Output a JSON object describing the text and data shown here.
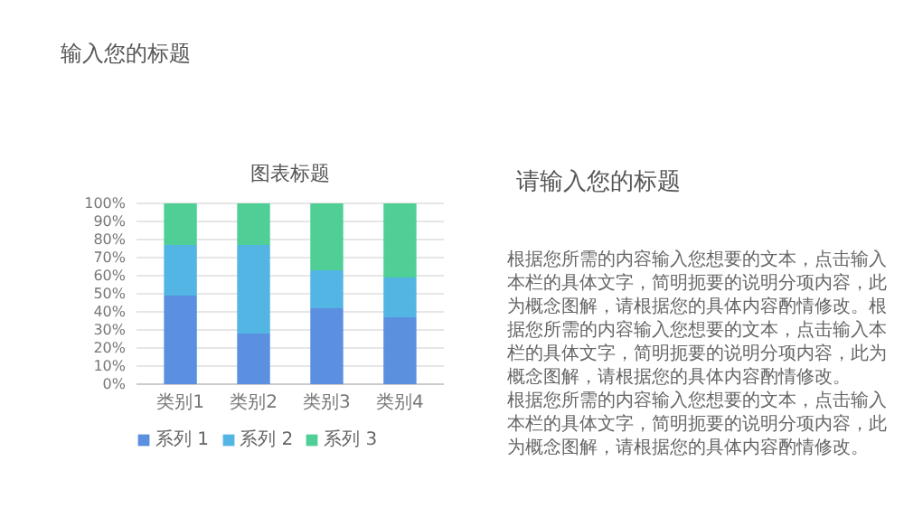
{
  "chart_data": {
    "type": "bar",
    "stacked": true,
    "title": "图表标题",
    "categories": [
      "类别1",
      "类别2",
      "类别3",
      "类别4"
    ],
    "series": [
      {
        "name": "系列 1",
        "color": "#5b8fe0",
        "values": [
          49,
          28,
          42,
          37
        ]
      },
      {
        "name": "系列 2",
        "color": "#52b5e3",
        "values": [
          28,
          49,
          21,
          22
        ]
      },
      {
        "name": "系列 3",
        "color": "#4fcf96",
        "values": [
          23,
          23,
          37,
          41
        ]
      }
    ],
    "ylim": [
      0,
      100
    ],
    "yticks": [
      {
        "value": 0,
        "label": "0%"
      },
      {
        "value": 10,
        "label": "10%"
      },
      {
        "value": 20,
        "label": "20%"
      },
      {
        "value": 30,
        "label": "30%"
      },
      {
        "value": 40,
        "label": "40%"
      },
      {
        "value": 50,
        "label": "50%"
      },
      {
        "value": 60,
        "label": "60%"
      },
      {
        "value": 70,
        "label": "70%"
      },
      {
        "value": 80,
        "label": "80%"
      },
      {
        "value": 90,
        "label": "90%"
      },
      {
        "value": 100,
        "label": "100%"
      }
    ],
    "grid": "y",
    "legend": "bottom",
    "annotations": [
      "输入您的标题",
      "请输入您的标题",
      "根据您所需的内容输入您想要的文本，点击输入本栏的具体文字，简明扼要的说明分项内容，此为概念图解，请根据您的具体内容酌情修改。根据您所需的内容输入您想要的文本，点击输入本栏的具体文字，简明扼要的说明分项内容，此为概念图解，请根据您的具体内容酌情修改。",
      "根据您所需的内容输入您想要的文本，点击输入本栏的具体文字，简明扼要的说明分项内容，此为概念图解，请根据您的具体内容酌情修改。"
    ]
  }
}
